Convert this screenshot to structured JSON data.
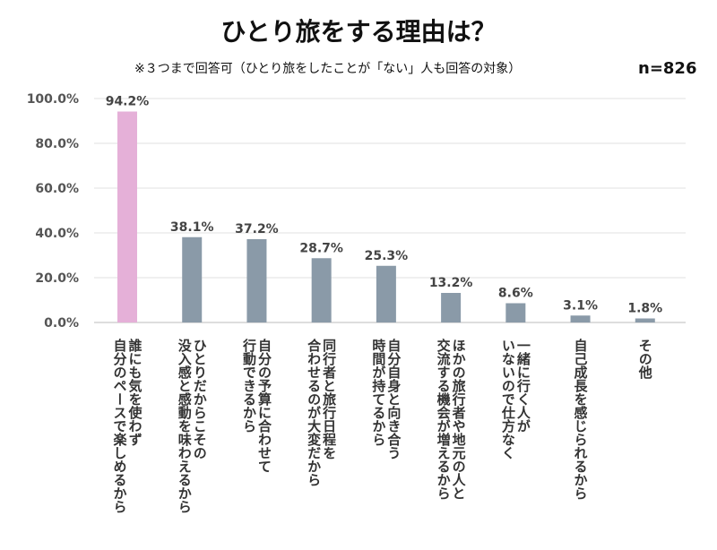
{
  "chart_data": {
    "type": "bar",
    "title": "ひとり旅をする理由は？",
    "subtitle": "※３つまで回答可（ひとり旅をしたことが「ない」人も回答の対象）",
    "sample_size": "n=826",
    "ylim": [
      0,
      100
    ],
    "yticks": [
      "0.0%",
      "20.0%",
      "40.0%",
      "60.0%",
      "80.0%",
      "100.0%"
    ],
    "ytick_values": [
      0,
      20,
      40,
      60,
      80,
      100
    ],
    "grid": true,
    "colors": {
      "highlight": "#e5b0d8",
      "default": "#8a9aa8"
    },
    "categories": [
      [
        "誰にも気を使わず",
        "自分のペースで楽しめるから"
      ],
      [
        "ひとりだからこその",
        "没入感と感動を味わえるから"
      ],
      [
        "自分の予算に合わせて",
        "行動できるから"
      ],
      [
        "同行者と旅行日程を",
        "合わせるのが大変だから"
      ],
      [
        "自分自身と向き合う",
        "時間が持てるから"
      ],
      [
        "ほかの旅行者や地元の人と",
        "交流する機会が増えるから"
      ],
      [
        "一緒に行く人が",
        "いないので仕方なく"
      ],
      [
        "自己成長を感じられるから"
      ],
      [
        "その他"
      ]
    ],
    "values": [
      94.2,
      38.1,
      37.2,
      28.7,
      25.3,
      13.2,
      8.6,
      3.1,
      1.8
    ],
    "value_labels": [
      "94.2%",
      "38.1%",
      "37.2%",
      "28.7%",
      "25.3%",
      "13.2%",
      "8.6%",
      "3.1%",
      "1.8%"
    ]
  }
}
